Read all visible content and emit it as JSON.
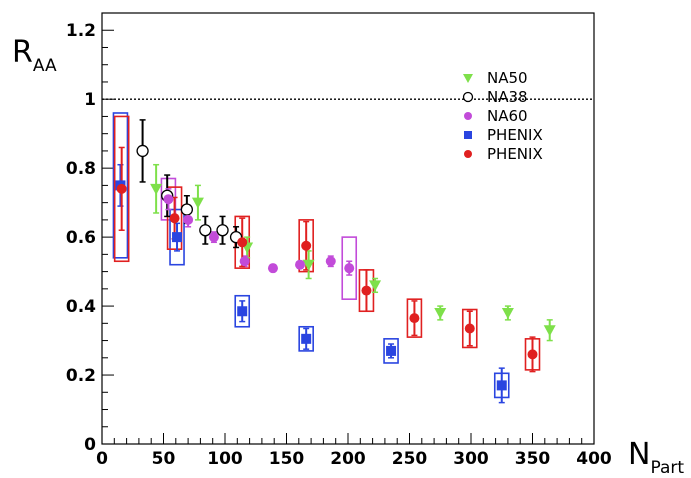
{
  "chart_data": {
    "type": "scatter",
    "title": "",
    "xlabel": {
      "main": "N",
      "sub": "Part"
    },
    "ylabel": {
      "main": "R",
      "sub": "AA"
    },
    "xlim": [
      0,
      400
    ],
    "ylim": [
      0,
      1.25
    ],
    "x_ticks": [
      "0",
      "50",
      "100",
      "150",
      "200",
      "250",
      "300",
      "350",
      "400"
    ],
    "y_ticks": [
      "0",
      "0.2",
      "0.4",
      "0.6",
      "0.8",
      "1",
      "1.2"
    ],
    "reference_line": {
      "y": 1,
      "style": "dotted"
    },
    "grid": false,
    "legend_position": "top-right",
    "series": [
      {
        "name": "NA50",
        "marker": "triangle-down",
        "color": "#7ee04a",
        "points": [
          {
            "x": 44,
            "y": 0.74,
            "err": 0.07
          },
          {
            "x": 78,
            "y": 0.7,
            "err": 0.05
          },
          {
            "x": 118,
            "y": 0.57,
            "err": 0.03
          },
          {
            "x": 168,
            "y": 0.52,
            "err": 0.04
          },
          {
            "x": 222,
            "y": 0.46,
            "err": 0.02
          },
          {
            "x": 275,
            "y": 0.38,
            "err": 0.02
          },
          {
            "x": 330,
            "y": 0.38,
            "err": 0.02
          },
          {
            "x": 364,
            "y": 0.33,
            "err": 0.03
          }
        ]
      },
      {
        "name": "NA38",
        "marker": "circle-open",
        "color": "#000000",
        "points": [
          {
            "x": 33,
            "y": 0.85,
            "err": 0.09
          },
          {
            "x": 53,
            "y": 0.72,
            "err": 0.06
          },
          {
            "x": 69,
            "y": 0.68,
            "err": 0.04
          },
          {
            "x": 84,
            "y": 0.62,
            "err": 0.04
          },
          {
            "x": 98,
            "y": 0.62,
            "err": 0.04
          },
          {
            "x": 109,
            "y": 0.6,
            "err": 0.03
          }
        ]
      },
      {
        "name": "NA60",
        "marker": "circle",
        "color": "#c24bd9",
        "points": [
          {
            "x": 54,
            "y": 0.71,
            "err": 0.03,
            "sys": 0.06
          },
          {
            "x": 70,
            "y": 0.65,
            "err": 0.02
          },
          {
            "x": 91,
            "y": 0.6,
            "err": 0.015
          },
          {
            "x": 116,
            "y": 0.53,
            "err": 0.015
          },
          {
            "x": 139,
            "y": 0.51,
            "err": 0.01
          },
          {
            "x": 161,
            "y": 0.52,
            "err": 0.01
          },
          {
            "x": 186,
            "y": 0.53,
            "err": 0.015
          },
          {
            "x": 201,
            "y": 0.51,
            "err": 0.02,
            "sys": 0.09
          }
        ]
      },
      {
        "name": "PHENIX",
        "marker": "square",
        "color": "#2a45e0",
        "points": [
          {
            "x": 15,
            "y": 0.75,
            "err": 0.06,
            "sys": 0.21
          },
          {
            "x": 61,
            "y": 0.6,
            "err": 0.04,
            "sys": 0.08
          },
          {
            "x": 114,
            "y": 0.385,
            "err": 0.03,
            "sys": 0.045
          },
          {
            "x": 166,
            "y": 0.305,
            "err": 0.03,
            "sys": 0.035
          },
          {
            "x": 235,
            "y": 0.27,
            "err": 0.02,
            "sys": 0.035
          },
          {
            "x": 325,
            "y": 0.17,
            "err": 0.05,
            "sys": 0.035
          }
        ]
      },
      {
        "name": "PHENIX",
        "marker": "circle",
        "color": "#e02020",
        "points": [
          {
            "x": 16,
            "y": 0.74,
            "err": 0.12,
            "sys": 0.21
          },
          {
            "x": 59,
            "y": 0.655,
            "err": 0.06,
            "sys": 0.09
          },
          {
            "x": 114,
            "y": 0.585,
            "err": 0.07,
            "sys": 0.075
          },
          {
            "x": 166,
            "y": 0.575,
            "err": 0.07,
            "sys": 0.075
          },
          {
            "x": 215,
            "y": 0.445,
            "err": 0.06,
            "sys": 0.06
          },
          {
            "x": 254,
            "y": 0.365,
            "err": 0.05,
            "sys": 0.055
          },
          {
            "x": 299,
            "y": 0.335,
            "err": 0.05,
            "sys": 0.055
          },
          {
            "x": 350,
            "y": 0.26,
            "err": 0.05,
            "sys": 0.045
          }
        ]
      }
    ]
  }
}
